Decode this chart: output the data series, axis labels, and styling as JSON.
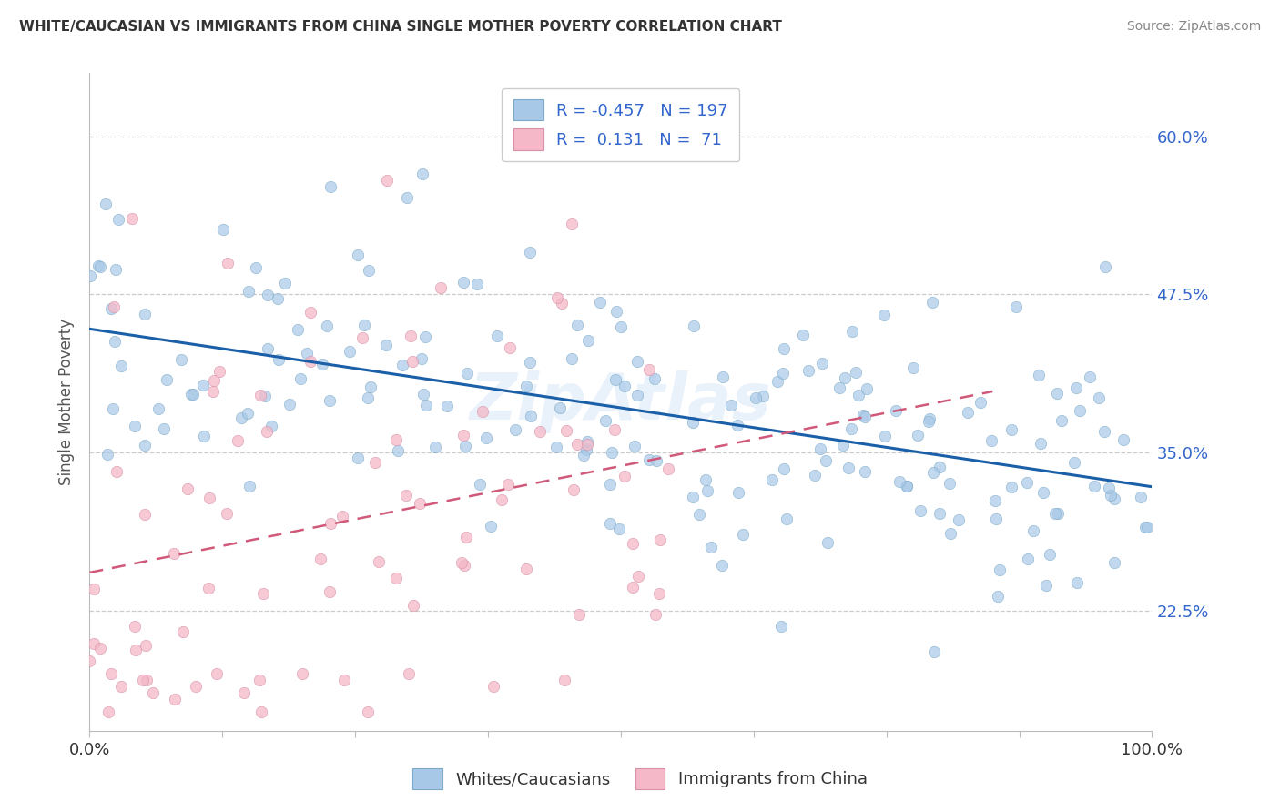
{
  "title": "WHITE/CAUCASIAN VS IMMIGRANTS FROM CHINA SINGLE MOTHER POVERTY CORRELATION CHART",
  "source": "Source: ZipAtlas.com",
  "ylabel": "Single Mother Poverty",
  "xlim": [
    0.0,
    1.0
  ],
  "ylim": [
    0.13,
    0.65
  ],
  "yticks": [
    0.225,
    0.35,
    0.475,
    0.6
  ],
  "ytick_labels": [
    "22.5%",
    "35.0%",
    "47.5%",
    "60.0%"
  ],
  "xtick_positions": [
    0.0,
    0.125,
    0.25,
    0.375,
    0.5,
    0.625,
    0.75,
    0.875,
    1.0
  ],
  "xtick_labels_show": {
    "0.0": "0.0%",
    "1.0": "100.0%"
  },
  "blue_color": "#a8c8e8",
  "blue_edge_color": "#7aaac8",
  "pink_color": "#f4b8c8",
  "pink_edge_color": "#d890a8",
  "blue_line_color": "#1a5fa8",
  "pink_line_color": "#d05878",
  "R_blue": -0.457,
  "N_blue": 197,
  "R_pink": 0.131,
  "N_pink": 71,
  "legend_label_blue": "Whites/Caucasians",
  "legend_label_pink": "Immigrants from China",
  "watermark": "ZipAtlas",
  "title_color": "#333333",
  "source_color": "#888888",
  "tick_label_color": "#3366cc",
  "ylabel_color": "#555555",
  "grid_color": "#cccccc",
  "dot_size": 80,
  "blue_alpha": 0.7,
  "pink_alpha": 0.75
}
